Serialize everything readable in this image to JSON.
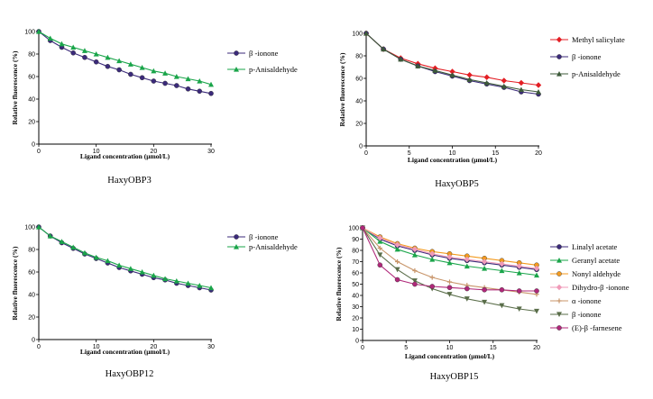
{
  "chart_data": [
    {
      "type": "line",
      "title": "HaxyOBP3",
      "xlabel": "Ligand concentration (μmol/L)",
      "ylabel": "Relative fluorescence (%)",
      "xlim": [
        0,
        30
      ],
      "ylim": [
        0,
        100
      ],
      "xticks": [
        0,
        10,
        20,
        30
      ],
      "yticks": [
        0,
        20,
        40,
        60,
        80,
        100
      ],
      "grid": false,
      "legend": "right",
      "x": [
        0,
        2,
        4,
        6,
        8,
        10,
        12,
        14,
        16,
        18,
        20,
        22,
        24,
        26,
        28,
        30
      ],
      "series": [
        {
          "name": "β -ionone",
          "color": "#3b2a7a",
          "marker": "circle",
          "values": [
            100,
            92,
            86,
            81,
            77,
            73,
            69,
            66,
            62,
            59,
            56,
            54,
            52,
            49,
            47,
            45
          ]
        },
        {
          "name": "p-Anisaldehyde",
          "color": "#1aa54a",
          "marker": "triangle",
          "values": [
            100,
            94,
            89,
            86,
            83,
            80,
            77,
            74,
            71,
            68,
            65,
            63,
            60,
            58,
            56,
            53
          ]
        }
      ]
    },
    {
      "type": "line",
      "title": "HaxyOBP5",
      "xlabel": "Ligand concentration (μmol/L)",
      "ylabel": "Relative fluorescence (%)",
      "xlim": [
        0,
        20
      ],
      "ylim": [
        0,
        100
      ],
      "xticks": [
        0,
        5,
        10,
        15,
        20
      ],
      "yticks": [
        0,
        20,
        40,
        60,
        80,
        100
      ],
      "grid": false,
      "legend": "right",
      "x": [
        0,
        2,
        4,
        6,
        8,
        10,
        12,
        14,
        16,
        18,
        20
      ],
      "series": [
        {
          "name": "Methyl salicylate",
          "color": "#e31e24",
          "marker": "diamond",
          "values": [
            100,
            86,
            78,
            73,
            69,
            66,
            63,
            61,
            58,
            56,
            54
          ]
        },
        {
          "name": "β -ionone",
          "color": "#3b2a7a",
          "marker": "circle",
          "values": [
            100,
            86,
            77,
            71,
            66,
            62,
            58,
            55,
            52,
            48,
            46
          ]
        },
        {
          "name": "p-Anisaldehyde",
          "color": "#3d5a3a",
          "marker": "triangle",
          "values": [
            100,
            86,
            77,
            71,
            67,
            63,
            59,
            56,
            53,
            50,
            48
          ]
        }
      ]
    },
    {
      "type": "line",
      "title": "HaxyOBP12",
      "xlabel": "Ligand concentration (μmol/L)",
      "ylabel": "Relative fluorescence (%)",
      "xlim": [
        0,
        30
      ],
      "ylim": [
        0,
        100
      ],
      "xticks": [
        0,
        10,
        20,
        30
      ],
      "yticks": [
        0,
        20,
        40,
        60,
        80,
        100
      ],
      "grid": false,
      "legend": "right",
      "x": [
        0,
        2,
        4,
        6,
        8,
        10,
        12,
        14,
        16,
        18,
        20,
        22,
        24,
        26,
        28,
        30
      ],
      "series": [
        {
          "name": "β -ionone",
          "color": "#3b2a7a",
          "marker": "circle",
          "values": [
            100,
            92,
            86,
            81,
            76,
            72,
            68,
            64,
            61,
            58,
            55,
            53,
            50,
            48,
            46,
            44
          ]
        },
        {
          "name": "p-Anisaldehyde",
          "color": "#1aa54a",
          "marker": "triangle",
          "values": [
            100,
            92,
            87,
            82,
            77,
            73,
            70,
            66,
            63,
            60,
            57,
            54,
            52,
            50,
            48,
            46
          ]
        }
      ]
    },
    {
      "type": "line",
      "title": "HaxyOBP15",
      "xlabel": "Ligand concentration (μmol/L)",
      "ylabel": "Relative fluorescence (%)",
      "xlim": [
        0,
        20
      ],
      "ylim": [
        0,
        100
      ],
      "xticks": [
        0,
        5,
        10,
        15,
        20
      ],
      "yticks": [
        0,
        10,
        20,
        30,
        40,
        50,
        60,
        70,
        80,
        90,
        100
      ],
      "grid": false,
      "legend": "right",
      "x": [
        0,
        2,
        4,
        6,
        8,
        10,
        12,
        14,
        16,
        18,
        20
      ],
      "series": [
        {
          "name": "Linalyl acetate",
          "color": "#3b2a7a",
          "marker": "circle",
          "values": [
            100,
            90,
            84,
            80,
            76,
            73,
            71,
            69,
            67,
            65,
            63
          ]
        },
        {
          "name": "Geranyl acetate",
          "color": "#1aa54a",
          "marker": "triangle",
          "values": [
            100,
            88,
            81,
            76,
            72,
            69,
            66,
            64,
            62,
            60,
            58
          ]
        },
        {
          "name": "Nonyl aldehyde",
          "color": "#f39a1e",
          "marker": "circle",
          "values": [
            100,
            92,
            86,
            82,
            79,
            77,
            75,
            73,
            71,
            69,
            67
          ]
        },
        {
          "name": "Dihydro-β -ionone",
          "color": "#f09ab8",
          "marker": "diamond",
          "values": [
            100,
            91,
            85,
            81,
            77,
            74,
            72,
            70,
            68,
            66,
            64
          ]
        },
        {
          "name": "α -ionone",
          "color": "#c8956a",
          "marker": "plus",
          "values": [
            100,
            82,
            70,
            62,
            56,
            52,
            49,
            47,
            45,
            43,
            41
          ]
        },
        {
          "name": "β -ionone",
          "color": "#5a6e4a",
          "marker": "triangle-down",
          "values": [
            100,
            76,
            63,
            53,
            46,
            41,
            37,
            34,
            31,
            28,
            26
          ]
        },
        {
          "name": "(E)-β -farnesene",
          "color": "#b0287a",
          "marker": "circle",
          "values": [
            100,
            67,
            54,
            50,
            48,
            47,
            46,
            45,
            45,
            44,
            44
          ]
        }
      ]
    }
  ]
}
